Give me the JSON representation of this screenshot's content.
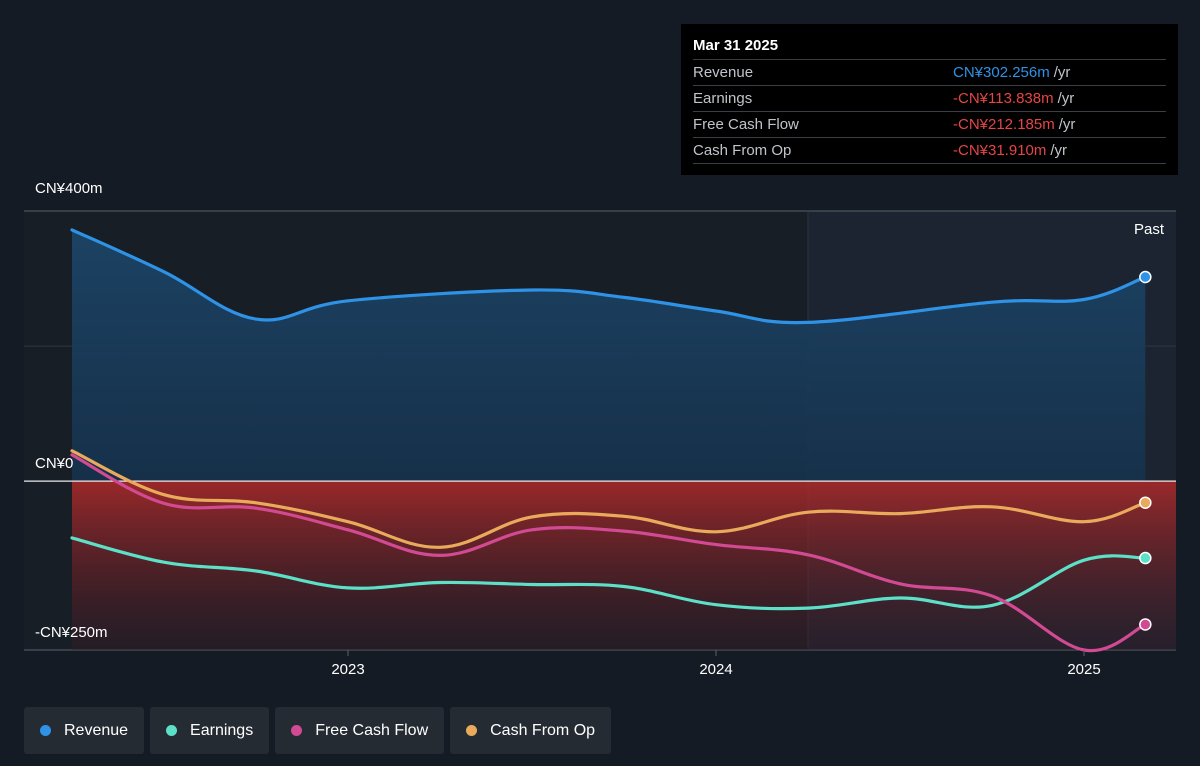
{
  "chart_data": {
    "type": "line",
    "x_ticks": [
      "2023",
      "2024",
      "2025"
    ],
    "y_ticks": [
      "CN¥400m",
      "CN¥0",
      "-CN¥250m"
    ],
    "ylim": [
      -250,
      400
    ],
    "past_label": "Past",
    "forecast_start": "2024-04",
    "series": [
      {
        "name": "Revenue",
        "color": "#2e93e6",
        "points": [
          [
            "2022-04",
            372
          ],
          [
            "2022-07",
            310
          ],
          [
            "2022-10",
            240
          ],
          [
            "2023-01",
            267
          ],
          [
            "2023-07",
            283
          ],
          [
            "2023-10",
            272
          ],
          [
            "2024-01",
            252
          ],
          [
            "2024-04",
            235
          ],
          [
            "2024-10",
            265
          ],
          [
            "2025-01",
            269
          ],
          [
            "2025-03",
            302.256
          ]
        ]
      },
      {
        "name": "Earnings",
        "color": "#5ce0c8",
        "points": [
          [
            "2022-04",
            -84
          ],
          [
            "2022-07",
            -120
          ],
          [
            "2022-10",
            -133
          ],
          [
            "2023-01",
            -158
          ],
          [
            "2023-04",
            -150
          ],
          [
            "2023-07",
            -153
          ],
          [
            "2023-10",
            -156
          ],
          [
            "2024-01",
            -183
          ],
          [
            "2024-04",
            -188
          ],
          [
            "2024-07",
            -173
          ],
          [
            "2024-10",
            -184
          ],
          [
            "2025-01",
            -117
          ],
          [
            "2025-03",
            -113.838
          ]
        ]
      },
      {
        "name": "Free Cash Flow",
        "color": "#d24a93",
        "points": [
          [
            "2022-04",
            39
          ],
          [
            "2022-07",
            -33
          ],
          [
            "2022-10",
            -40
          ],
          [
            "2023-01",
            -72
          ],
          [
            "2023-04",
            -110
          ],
          [
            "2023-07",
            -72
          ],
          [
            "2023-10",
            -74
          ],
          [
            "2024-01",
            -94
          ],
          [
            "2024-04",
            -109
          ],
          [
            "2024-07",
            -152
          ],
          [
            "2024-10",
            -170
          ],
          [
            "2025-01",
            -250
          ],
          [
            "2025-03",
            -212.185
          ]
        ]
      },
      {
        "name": "Cash From Op",
        "color": "#e9aa5b",
        "points": [
          [
            "2022-04",
            45
          ],
          [
            "2022-07",
            -20
          ],
          [
            "2022-10",
            -32
          ],
          [
            "2023-01",
            -60
          ],
          [
            "2023-04",
            -98
          ],
          [
            "2023-07",
            -53
          ],
          [
            "2023-10",
            -52
          ],
          [
            "2024-01",
            -75
          ],
          [
            "2024-04",
            -46
          ],
          [
            "2024-07",
            -48
          ],
          [
            "2024-10",
            -38
          ],
          [
            "2025-01",
            -60
          ],
          [
            "2025-03",
            -31.91
          ]
        ]
      }
    ]
  },
  "tooltip": {
    "date": "Mar 31 2025",
    "rows": [
      {
        "label": "Revenue",
        "value": "CN¥302.256m",
        "unit": "/yr",
        "color": "#2e93e6"
      },
      {
        "label": "Earnings",
        "value": "-CN¥113.838m",
        "unit": "/yr",
        "color": "#e64545"
      },
      {
        "label": "Free Cash Flow",
        "value": "-CN¥212.185m",
        "unit": "/yr",
        "color": "#e64545"
      },
      {
        "label": "Cash From Op",
        "value": "-CN¥31.910m",
        "unit": "/yr",
        "color": "#e64545"
      }
    ]
  },
  "legend": [
    {
      "label": "Revenue",
      "color": "#2e93e6"
    },
    {
      "label": "Earnings",
      "color": "#5ce0c8"
    },
    {
      "label": "Free Cash Flow",
      "color": "#d24a93"
    },
    {
      "label": "Cash From Op",
      "color": "#e9aa5b"
    }
  ]
}
